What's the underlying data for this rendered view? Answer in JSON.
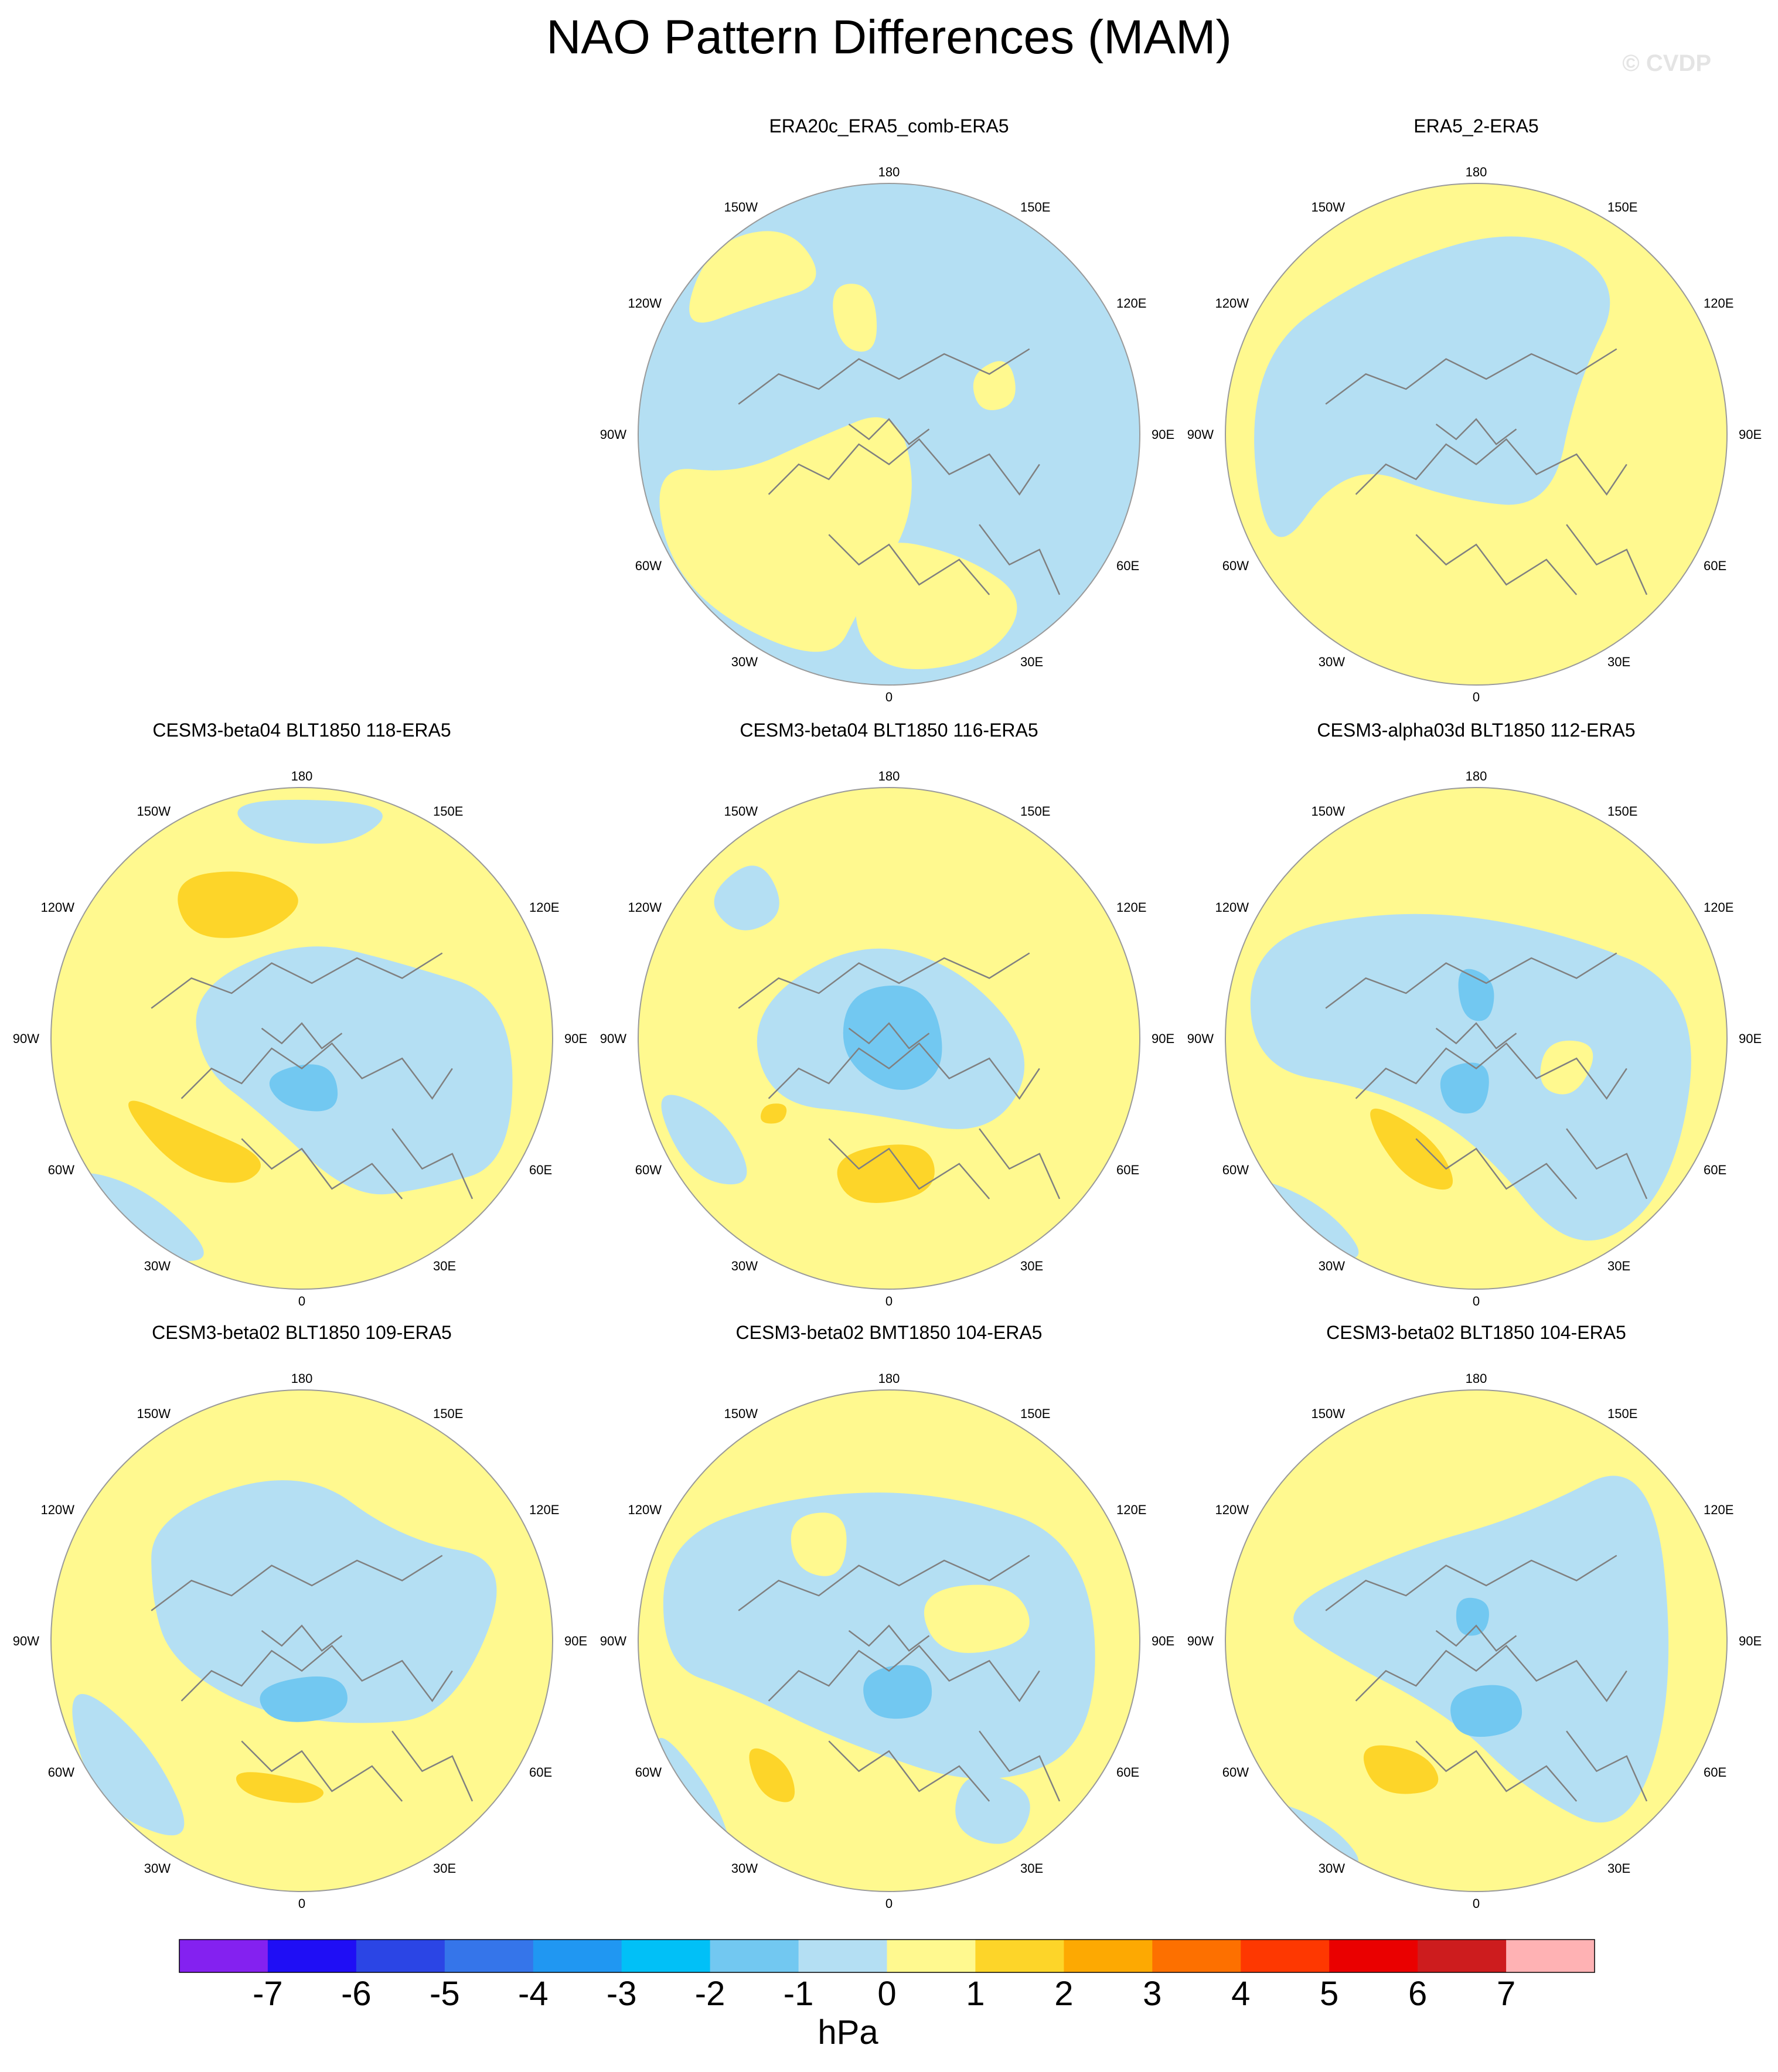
{
  "title": "NAO Pattern Differences (MAM)",
  "watermark": "© CVDP",
  "lon_labels": [
    "180",
    "150E",
    "120E",
    "90E",
    "60E",
    "30E",
    "0",
    "30W",
    "60W",
    "90W",
    "120W",
    "150W"
  ],
  "colors": {
    "ocean_negative": "#b4dff3",
    "ocean_positive": "#fff98f",
    "coastline": "#808080",
    "map_border": "#9a9a9a"
  },
  "panels": [
    {
      "title": "ERA20c_ERA5_comb-ERA5",
      "row": 0,
      "col": 1
    },
    {
      "title": "ERA5_2-ERA5",
      "row": 0,
      "col": 2
    },
    {
      "title": "CESM3-beta04 BLT1850 118-ERA5",
      "row": 1,
      "col": 0
    },
    {
      "title": "CESM3-beta04 BLT1850 116-ERA5",
      "row": 1,
      "col": 1
    },
    {
      "title": "CESM3-alpha03d BLT1850 112-ERA5",
      "row": 1,
      "col": 2
    },
    {
      "title": "CESM3-beta02 BLT1850 109-ERA5",
      "row": 2,
      "col": 0
    },
    {
      "title": "CESM3-beta02 BMT1850 104-ERA5",
      "row": 2,
      "col": 1
    },
    {
      "title": "CESM3-beta02 BLT1850 104-ERA5",
      "row": 2,
      "col": 2
    }
  ],
  "colorbar": {
    "units": "hPa",
    "labels": [
      "-7",
      "-6",
      "-5",
      "-4",
      "-3",
      "-2",
      "-1",
      "0",
      "1",
      "2",
      "3",
      "4",
      "5",
      "6",
      "7"
    ],
    "colors": [
      "#8421f0",
      "#1f0ef5",
      "#2b45e5",
      "#3575ea",
      "#2097f2",
      "#01c0f7",
      "#72c8f1",
      "#b4dff3",
      "#fff98f",
      "#fdd529",
      "#fda902",
      "#fd7000",
      "#fe3801",
      "#ea0000",
      "#cd1c1e",
      "#ffb2b4"
    ]
  }
}
